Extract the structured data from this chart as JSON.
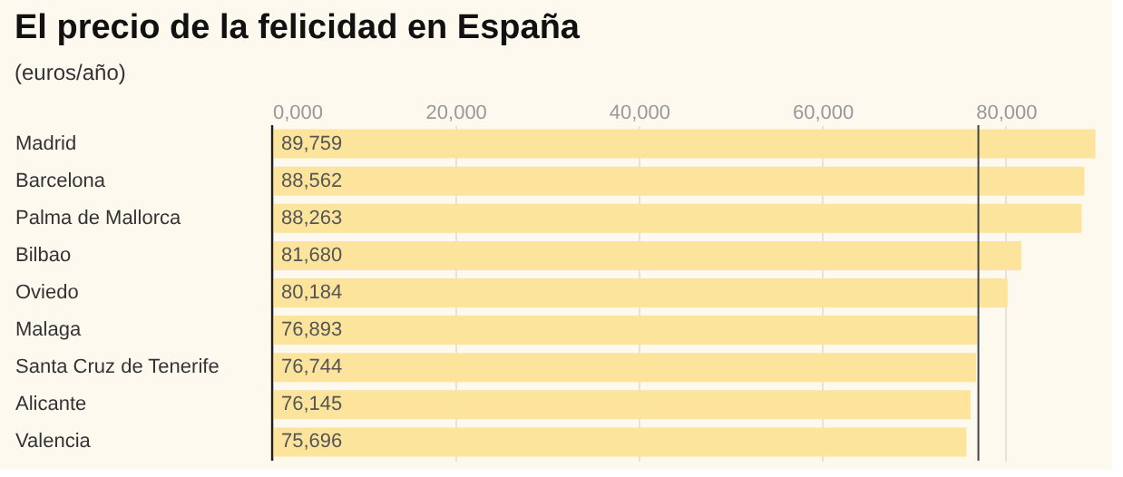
{
  "chart_data": {
    "type": "bar",
    "orientation": "horizontal",
    "title": "El precio de la felicidad en España",
    "subtitle": "(euros/año)",
    "categories": [
      "Madrid",
      "Barcelona",
      "Palma de Mallorca",
      "Bilbao",
      "Oviedo",
      "Malaga",
      "Santa Cruz de Tenerife",
      "Alicante",
      "Valencia"
    ],
    "values": [
      89759,
      88562,
      88263,
      81680,
      80184,
      76893,
      76744,
      76145,
      75696
    ],
    "value_labels": [
      "89,759",
      "88,562",
      "88,263",
      "81,680",
      "80,184",
      "76,893",
      "76,744",
      "76,145",
      "75,696"
    ],
    "color": "#fde49c",
    "xlim": [
      0,
      90000
    ],
    "xticks": [
      {
        "value": 0,
        "label": "0,000"
      },
      {
        "value": 20000,
        "label": "20,000"
      },
      {
        "value": 40000,
        "label": "40,000"
      },
      {
        "value": 60000,
        "label": "60,000"
      },
      {
        "value": 80000,
        "label": "80,000"
      }
    ],
    "grid": "x",
    "ref_lines": [
      {
        "axis": "x",
        "value": 77000,
        "color": "#444444"
      }
    ]
  }
}
